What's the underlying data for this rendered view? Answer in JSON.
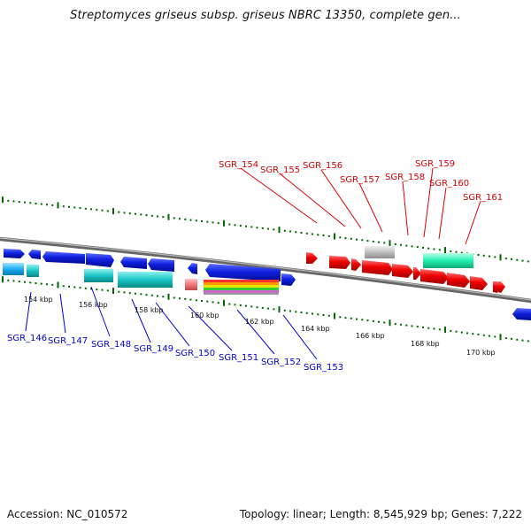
{
  "title": "Streptomyces griseus subsp. griseus NBRC 13350, complete gen...",
  "footer": {
    "accession": "Accession: NC_010572",
    "summary": "Topology: linear; Length: 8,545,929 bp; Genes: 7,222"
  },
  "colors": {
    "backbone": "#888888",
    "upper_labels": "#cc0000",
    "lower_labels": "#0000cc",
    "ticks": "#006600"
  },
  "scale_labels": [
    "154 kbp",
    "156 kbp",
    "158 kbp",
    "160 kbp",
    "162 kbp",
    "164 kbp",
    "166 kbp",
    "168 kbp",
    "170 kbp"
  ],
  "upper_genes": [
    "SGR_154",
    "SGR_155",
    "SGR_156",
    "SGR_157",
    "SGR_158",
    "SGR_159",
    "SGR_160",
    "SGR_161"
  ],
  "lower_genes": [
    "SGR_146",
    "SGR_147",
    "SGR_148",
    "SGR_149",
    "SGR_150",
    "SGR_151",
    "SGR_152",
    "SGR_153"
  ]
}
